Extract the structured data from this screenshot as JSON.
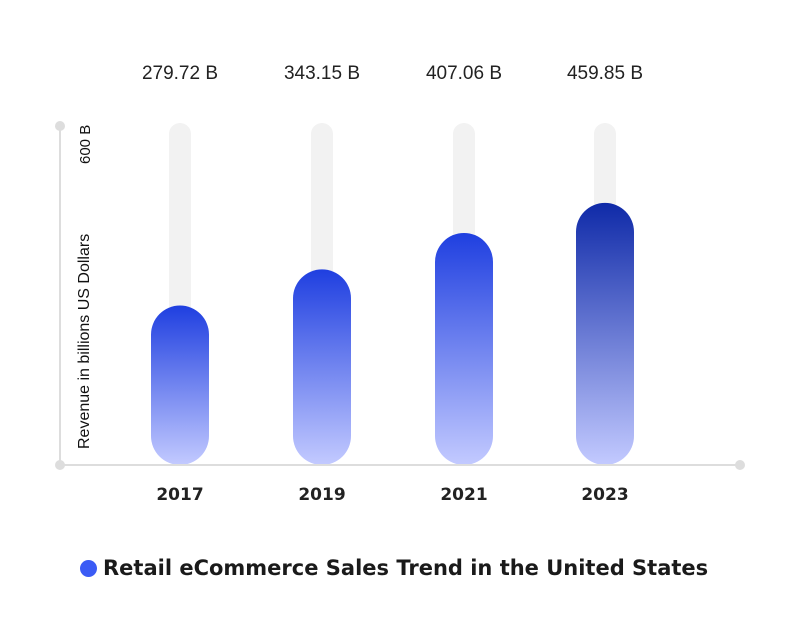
{
  "chart_data": {
    "type": "bar",
    "categories": [
      "2017",
      "2019",
      "2021",
      "2023"
    ],
    "series": [
      {
        "name": "Retail eCommerce Sales Trend in the United States",
        "values": [
          279.72,
          343.15,
          407.06,
          459.85
        ],
        "value_labels": [
          "279.72 B",
          "343.15 B",
          "407.06 B",
          "459.85 B"
        ]
      }
    ],
    "ylabel": "Revenue in billions US Dollars",
    "ylim": [
      0,
      600
    ],
    "ymax_label": "600 B",
    "grid": false,
    "legend": "bottom-left"
  },
  "colors": {
    "bar_top": "#1f3fe0",
    "bar_bottom": "#c3caff",
    "bar_top_dark": "#0f2aa8",
    "track": "#f2f2f2",
    "axis": "#dddddd",
    "legend_dot": "#3b5bf5"
  }
}
